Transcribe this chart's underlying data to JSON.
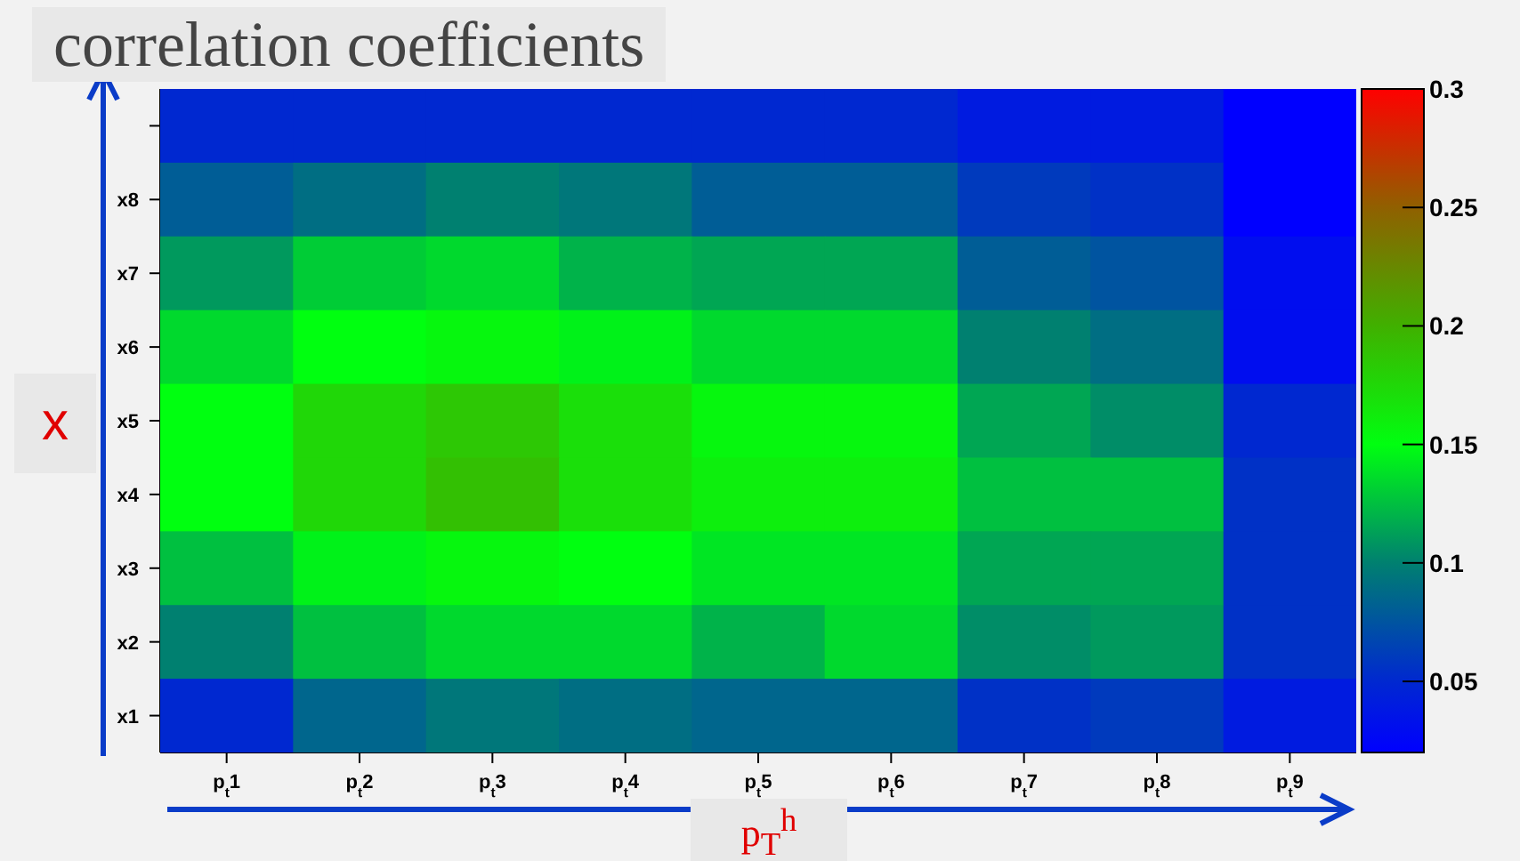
{
  "chart_data": {
    "type": "heatmap",
    "title": "correlation coefficients",
    "xlabel": "p$_{T}$$^{h}$",
    "ylabel": "x",
    "categories": [
      "p$_{t}$1",
      "p$_{t}$2",
      "p$_{t}$3",
      "p$_{t}$4",
      "p$_{t}$5",
      "p$_{t}$6",
      "p$_{t}$7",
      "p$_{t}$8",
      "p$_{t}$9"
    ],
    "y_categories": [
      null,
      "x8",
      "x7",
      "x6",
      "x5",
      "x4",
      "x3",
      "x2",
      "x1"
    ],
    "cells": [
      [
        0.05,
        0.05,
        0.05,
        0.05,
        0.05,
        0.05,
        0.04,
        0.04,
        0.02
      ],
      [
        0.08,
        0.09,
        0.1,
        0.095,
        0.08,
        0.08,
        0.06,
        0.055,
        0.02
      ],
      [
        0.11,
        0.13,
        0.135,
        0.12,
        0.115,
        0.115,
        0.08,
        0.075,
        0.03
      ],
      [
        0.135,
        0.15,
        0.155,
        0.145,
        0.135,
        0.135,
        0.1,
        0.09,
        0.03
      ],
      [
        0.15,
        0.175,
        0.185,
        0.17,
        0.155,
        0.155,
        0.115,
        0.105,
        0.05
      ],
      [
        0.15,
        0.175,
        0.19,
        0.17,
        0.16,
        0.16,
        0.125,
        0.125,
        0.055
      ],
      [
        0.125,
        0.145,
        0.155,
        0.15,
        0.14,
        0.14,
        0.115,
        0.115,
        0.055
      ],
      [
        0.1,
        0.125,
        0.135,
        0.135,
        0.12,
        0.135,
        0.105,
        0.11,
        0.055
      ],
      [
        0.05,
        0.085,
        0.095,
        0.09,
        0.085,
        0.085,
        0.055,
        0.06,
        0.04
      ]
    ],
    "clim": [
      0.02,
      0.3
    ],
    "cticks": [
      0.05,
      0.1,
      0.15,
      0.2,
      0.25,
      0.3
    ]
  }
}
